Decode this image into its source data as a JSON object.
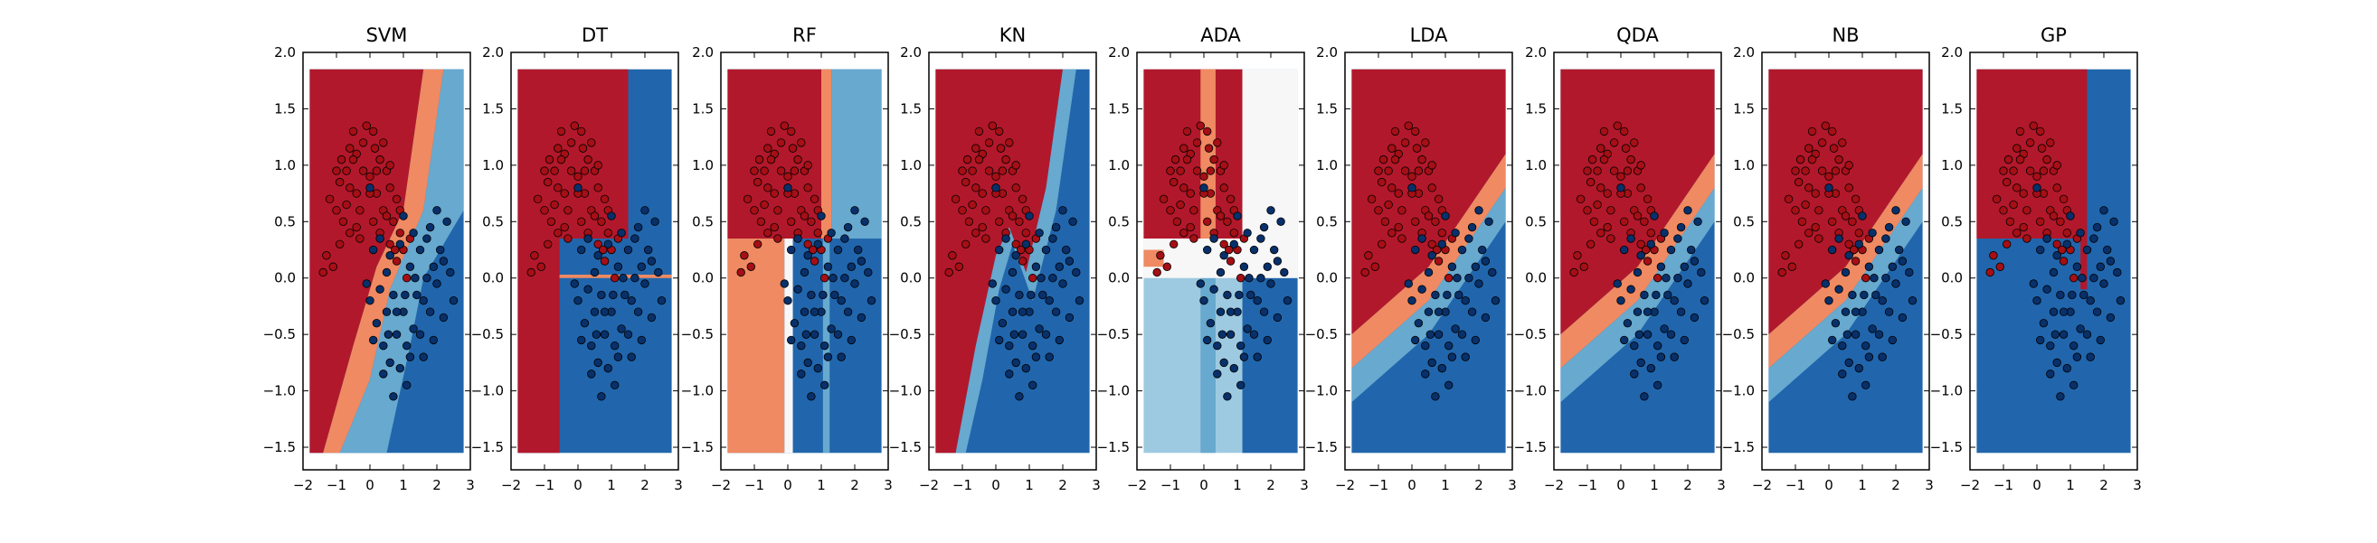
{
  "chart_data": {
    "type": "scatter",
    "panels": [
      {
        "title": "SVM"
      },
      {
        "title": "DT"
      },
      {
        "title": "RF"
      },
      {
        "title": "KN"
      },
      {
        "title": "ADA"
      },
      {
        "title": "LDA"
      },
      {
        "title": "QDA"
      },
      {
        "title": "NB"
      },
      {
        "title": "GP"
      }
    ],
    "xlim": [
      -2,
      3
    ],
    "ylim": [
      -1.7,
      2.0
    ],
    "xticks": [
      "−2",
      "−1",
      "0",
      "1",
      "2",
      "3"
    ],
    "yticks": [
      "−1.5",
      "−1.0",
      "−0.5",
      "0.0",
      "0.5",
      "1.0",
      "1.5",
      "2.0"
    ],
    "colors": {
      "class_red": "#a50f15",
      "class_blue": "#08306b",
      "red_region": "#b2182b",
      "blue_region": "#2166ac",
      "light_red": "#ef8a62",
      "light_blue": "#67a9cf",
      "neutral": "#f7f7f7"
    },
    "series": [
      {
        "class": 0,
        "points": [
          [
            -0.9,
            0.85
          ],
          [
            -0.7,
            0.95
          ],
          [
            -0.5,
            1.3
          ],
          [
            -0.4,
            1.1
          ],
          [
            -0.2,
            1.2
          ],
          [
            0.1,
            1.3
          ],
          [
            0.3,
            1.05
          ],
          [
            0.5,
            0.95
          ],
          [
            0.6,
            0.8
          ],
          [
            0.8,
            0.7
          ],
          [
            -1.0,
            0.6
          ],
          [
            -0.8,
            0.5
          ],
          [
            -0.6,
            0.4
          ],
          [
            -0.3,
            0.6
          ],
          [
            0.0,
            0.9
          ],
          [
            0.2,
            0.75
          ],
          [
            0.4,
            0.6
          ],
          [
            0.7,
            0.5
          ],
          [
            0.9,
            0.4
          ],
          [
            1.0,
            0.25
          ],
          [
            1.1,
            0.0
          ],
          [
            -1.3,
            0.2
          ],
          [
            -1.1,
            0.1
          ],
          [
            -1.4,
            0.05
          ],
          [
            -0.2,
            0.95
          ],
          [
            0.2,
            0.95
          ],
          [
            0.6,
            0.3
          ],
          [
            -0.6,
            0.8
          ],
          [
            -0.4,
            0.75
          ],
          [
            0.3,
            0.4
          ],
          [
            0.1,
            0.5
          ],
          [
            -0.9,
            0.3
          ],
          [
            -0.7,
            0.65
          ],
          [
            -0.5,
            1.05
          ],
          [
            0.4,
            1.2
          ],
          [
            -0.1,
            1.35
          ],
          [
            0.8,
            0.15
          ],
          [
            1.2,
            0.35
          ],
          [
            -0.3,
            0.35
          ],
          [
            0.6,
            1.0
          ],
          [
            -1.2,
            0.7
          ],
          [
            -0.85,
            1.05
          ],
          [
            0.0,
            0.75
          ],
          [
            -0.6,
            1.15
          ],
          [
            0.5,
            0.55
          ],
          [
            0.9,
            0.6
          ],
          [
            -0.4,
            0.45
          ],
          [
            -1.0,
            0.95
          ],
          [
            0.15,
            1.15
          ],
          [
            0.75,
            0.25
          ]
        ],
        "label": ""
      },
      {
        "class": 1,
        "points": [
          [
            0.1,
            0.25
          ],
          [
            0.3,
            -0.1
          ],
          [
            0.5,
            -0.3
          ],
          [
            0.8,
            -0.5
          ],
          [
            1.1,
            -0.6
          ],
          [
            1.3,
            -0.45
          ],
          [
            1.6,
            -0.2
          ],
          [
            1.9,
            0.1
          ],
          [
            2.1,
            0.25
          ],
          [
            2.3,
            0.5
          ],
          [
            0.0,
            -0.2
          ],
          [
            0.2,
            -0.4
          ],
          [
            0.4,
            -0.6
          ],
          [
            0.6,
            -0.75
          ],
          [
            0.9,
            -0.8
          ],
          [
            1.2,
            -0.7
          ],
          [
            1.5,
            -0.5
          ],
          [
            1.8,
            -0.3
          ],
          [
            2.0,
            -0.05
          ],
          [
            2.2,
            0.15
          ],
          [
            0.5,
            0.05
          ],
          [
            0.7,
            -0.15
          ],
          [
            1.0,
            -0.3
          ],
          [
            1.4,
            -0.15
          ],
          [
            1.7,
            0.0
          ],
          [
            0.9,
            0.3
          ],
          [
            1.2,
            0.1
          ],
          [
            1.5,
            0.25
          ],
          [
            1.8,
            0.45
          ],
          [
            2.0,
            0.6
          ],
          [
            -0.1,
            -0.05
          ],
          [
            0.3,
            0.35
          ],
          [
            0.6,
            0.2
          ],
          [
            1.0,
            0.55
          ],
          [
            1.3,
            0.4
          ],
          [
            1.7,
            0.35
          ],
          [
            2.4,
            0.05
          ],
          [
            2.5,
            -0.2
          ],
          [
            1.1,
            -0.95
          ],
          [
            0.7,
            -1.05
          ],
          [
            0.4,
            -0.85
          ],
          [
            0.1,
            -0.55
          ],
          [
            1.6,
            -0.7
          ],
          [
            1.9,
            -0.55
          ],
          [
            2.2,
            -0.35
          ],
          [
            0.8,
            -0.3
          ],
          [
            1.35,
            0.0
          ],
          [
            0.55,
            -0.5
          ],
          [
            1.05,
            -0.15
          ],
          [
            0.0,
            0.8
          ]
        ],
        "label": ""
      }
    ]
  }
}
